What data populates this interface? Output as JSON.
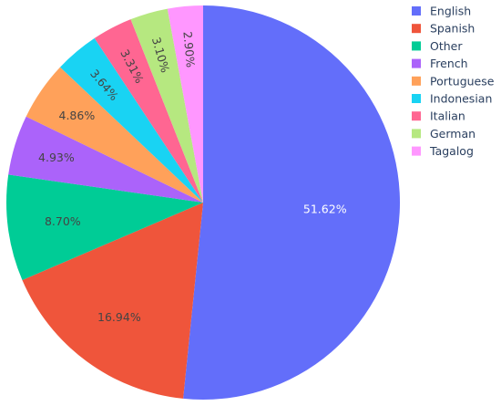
{
  "chart_data": {
    "type": "pie",
    "labels": [
      "English",
      "Spanish",
      "Other",
      "French",
      "Portuguese",
      "Indonesian",
      "Italian",
      "German",
      "Tagalog"
    ],
    "values": [
      51.62,
      16.94,
      8.7,
      4.93,
      4.86,
      3.64,
      3.31,
      3.1,
      2.9
    ],
    "text": [
      "51.62%",
      "16.94%",
      "8.70%",
      "4.93%",
      "4.86%",
      "3.64%",
      "3.31%",
      "3.10%",
      "2.90%"
    ],
    "colors": [
      "#636efa",
      "#EF553B",
      "#00cc96",
      "#ab63fa",
      "#FFA15A",
      "#19d3f3",
      "#FF6692",
      "#B6E880",
      "#FF97FF"
    ],
    "label_colors": [
      "#ffffff",
      "#444444",
      "#444444",
      "#444444",
      "#444444",
      "#444444",
      "#444444",
      "#444444",
      "#444444"
    ],
    "direction": "clockwise",
    "start": "top",
    "legend": "top-right"
  }
}
